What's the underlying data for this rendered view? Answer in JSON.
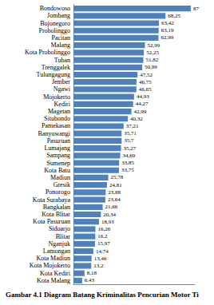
{
  "chart_data": {
    "type": "bar",
    "orientation": "horizontal",
    "title": "Gambar 4.1 Diagram Batang Kriminalitas Pencurian Motor Ti",
    "categories": [
      "Bondowoso",
      "Jombang",
      "Bojonegoro",
      "Probolinggo",
      "Pacitan",
      "Malang",
      "Kota Probolinggo",
      "Tuban",
      "Trenggalek",
      "Tulungagung",
      "Jember",
      "Ngawi",
      "Mojokerto",
      "Kediri",
      "Magetan",
      "Situbondo",
      "Pamekasan",
      "Banyuwangi",
      "Pasuruan",
      "Lumajang",
      "Sampang",
      "Sumenep",
      "Kota Batu",
      "Madiun",
      "Gresik",
      "Ponorogo",
      "Kota Surabaya",
      "Bangkalan",
      "Kota Blitar",
      "Kota Pasuruan",
      "Sidoarjo",
      "Blitar",
      "Nganjuk",
      "Lamongan",
      "Kota Madiun",
      "Kota Mojokerto",
      "Kota Kediri",
      "Kota Malang"
    ],
    "values": [
      87,
      68.25,
      63.42,
      63.19,
      62.99,
      52.99,
      52.25,
      51.82,
      50.99,
      47.52,
      46.75,
      46.65,
      44.93,
      44.27,
      42.99,
      40.32,
      37.21,
      35.71,
      35.7,
      35.27,
      34.69,
      33.85,
      33.75,
      25.78,
      24.81,
      23.88,
      23.64,
      21.66,
      20.34,
      18.93,
      16.26,
      16.2,
      15.97,
      14.74,
      13.46,
      13.2,
      8.18,
      6.43
    ],
    "value_labels": [
      "87",
      "68,25",
      "63,42",
      "63,19",
      "62,99",
      "52,99",
      "52,25",
      "51,82",
      "50,99",
      "47,52",
      "46,75",
      "46,65",
      "44,93",
      "44,27",
      "42,99",
      "40,32",
      "37,21",
      "35,71",
      "35,7",
      "35,27",
      "34,69",
      "33,85",
      "33,75",
      "25,78",
      "24,81",
      "23,88",
      "23,64",
      "21,66",
      "20,34",
      "18,93",
      "16,26",
      "16,2",
      "15,97",
      "14,74",
      "13,46",
      "13,2",
      "8,18",
      "6,43"
    ],
    "color": "#4f81bd",
    "xlim": [
      0,
      90
    ],
    "data_labels": true,
    "tick_labels": "y",
    "grid": false
  }
}
